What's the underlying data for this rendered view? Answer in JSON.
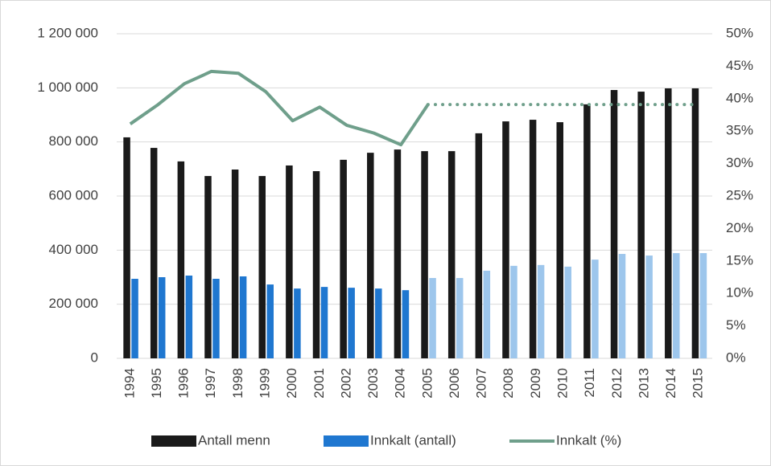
{
  "chart_data": {
    "type": "bar",
    "categories": [
      "1994",
      "1995",
      "1996",
      "1997",
      "1998",
      "1999",
      "2000",
      "2001",
      "2002",
      "2003",
      "2004",
      "2005",
      "2006",
      "2007",
      "2008",
      "2009",
      "2010",
      "2011",
      "2012",
      "2013",
      "2014",
      "2015"
    ],
    "series": [
      {
        "name": "Antall menn",
        "color": "#1a1a1a",
        "values": [
          817000,
          778000,
          728000,
          674000,
          698000,
          674000,
          713000,
          692000,
          734000,
          760000,
          772000,
          766000,
          766000,
          832000,
          876000,
          882000,
          873000,
          939000,
          992000,
          986000,
          998000,
          998000
        ]
      },
      {
        "name": "Innkalt (antall)",
        "color": "#1f77d0",
        "colors": [
          "#1f77d0",
          "#1f77d0",
          "#1f77d0",
          "#1f77d0",
          "#1f77d0",
          "#1f77d0",
          "#1f77d0",
          "#1f77d0",
          "#1f77d0",
          "#1f77d0",
          "#1f77d0",
          "#9dc6ec",
          "#9dc6ec",
          "#9dc6ec",
          "#9dc6ec",
          "#9dc6ec",
          "#9dc6ec",
          "#9dc6ec",
          "#9dc6ec",
          "#9dc6ec",
          "#9dc6ec",
          "#9dc6ec"
        ],
        "values": [
          294000,
          300000,
          306000,
          294000,
          303000,
          273000,
          258000,
          264000,
          261000,
          258000,
          252000,
          297000,
          297000,
          324000,
          342000,
          345000,
          339000,
          365000,
          386000,
          380000,
          389000,
          389000
        ]
      },
      {
        "name": "Innkalt (%)",
        "type": "line",
        "axis": "y2",
        "color": "#6f9f8b",
        "dashed_from": "2005",
        "values": [
          36.1,
          39.0,
          42.3,
          44.2,
          43.9,
          41.1,
          36.6,
          38.7,
          35.9,
          34.7,
          32.9,
          39.1,
          39.1,
          39.1,
          39.1,
          39.1,
          39.1,
          39.1,
          39.1,
          39.1,
          39.1,
          39.1
        ]
      }
    ],
    "ylim": [
      0,
      1200000
    ],
    "yticks": [
      0,
      {
        "value": 200000,
        "label": "200 000"
      },
      {
        "value": 400000,
        "label": "400 000"
      },
      {
        "value": 600000,
        "label": "600 000"
      },
      {
        "value": 800000,
        "label": "800 000"
      },
      {
        "value": 1000000,
        "label": "1 000 000"
      },
      {
        "value": 1200000,
        "label": "1 200 000"
      }
    ],
    "y2lim": [
      0,
      50
    ],
    "y2ticks": [
      {
        "value": 0,
        "label": "0%"
      },
      {
        "value": 5,
        "label": "5%"
      },
      {
        "value": 10,
        "label": "10%"
      },
      {
        "value": 15,
        "label": "15%"
      },
      {
        "value": 20,
        "label": "20%"
      },
      {
        "value": 25,
        "label": "25%"
      },
      {
        "value": 30,
        "label": "30%"
      },
      {
        "value": 35,
        "label": "35%"
      },
      {
        "value": 40,
        "label": "40%"
      },
      {
        "value": 45,
        "label": "45%"
      },
      {
        "value": 50,
        "label": "50%"
      }
    ],
    "grid": true,
    "legend": "bottom"
  }
}
